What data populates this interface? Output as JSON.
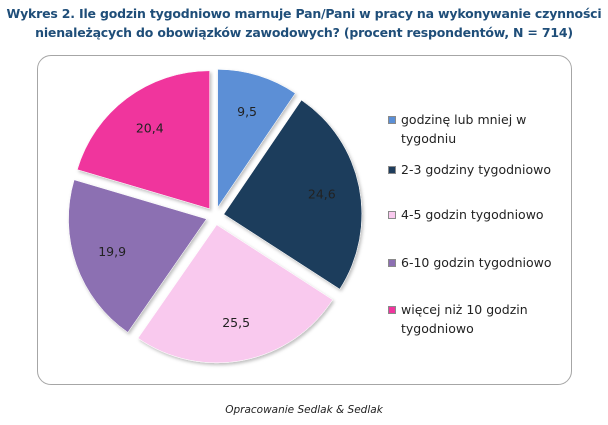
{
  "header": {
    "title_line1": "Wykres 2. Ile godzin tygodniowo marnuje Pan/Pani w pracy na wykonywanie czynności",
    "title_line2": "nienależących do obowiązków zawodowych? (procent respondentów, N = 714)"
  },
  "chart_data": {
    "type": "pie",
    "categories": [
      "godzinę lub mniej w tygodniu",
      "2-3 godziny tygodniowo",
      "4-5 godzin tygodniowo",
      "6-10 godzin tygodniowo",
      "więcej niż 10 godzin tygodniowo"
    ],
    "values": [
      9.5,
      24.6,
      25.5,
      19.9,
      20.4
    ],
    "data_labels": [
      "9,5",
      "24,6",
      "25,5",
      "19,9",
      "20,4"
    ],
    "colors": [
      "#5b8fd6",
      "#1f3d5c",
      "#f9c9ee",
      "#8c6fb2",
      "#f0359d"
    ],
    "legend_position": "right",
    "exploded": true
  },
  "legend": {
    "items": [
      {
        "lines": [
          "godzinę lub mniej w",
          "tygodniu"
        ]
      },
      {
        "lines": [
          "2-3 godziny tygodniowo"
        ]
      },
      {
        "lines": [
          "4-5 godzin tygodniowo"
        ]
      },
      {
        "lines": [
          "6-10 godzin tygodniowo"
        ]
      },
      {
        "lines": [
          "więcej niż 10 godzin",
          "tygodniowo"
        ]
      }
    ]
  },
  "footer": {
    "caption": "Opracowanie Sedlak & Sedlak"
  }
}
